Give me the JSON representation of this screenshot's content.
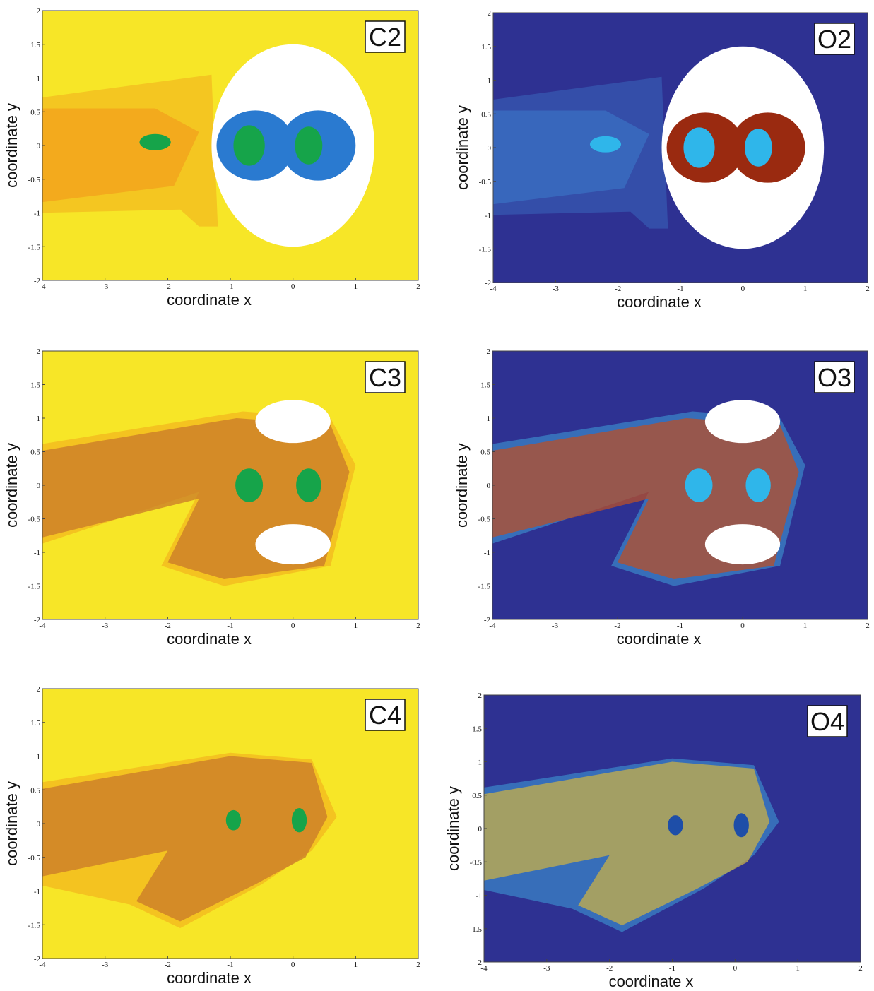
{
  "panels": [
    {
      "label": "C2",
      "background": "#f7e627",
      "accent": "#f2a51c",
      "core": "#2a7ad0",
      "spot": "#16a44a",
      "xlabel": "coordinate x",
      "ylabel": "coordinate y",
      "xlim": [
        -4,
        2
      ],
      "ylim": [
        -2,
        2
      ],
      "xticks": [
        -4,
        -3,
        -2,
        -1,
        0,
        1,
        2
      ],
      "yticks": [
        -2,
        -1.5,
        -1,
        -0.5,
        0,
        0.5,
        1,
        1.5,
        2
      ]
    },
    {
      "label": "O2",
      "background": "#2e3192",
      "accent": "#3a6cc0",
      "core": "#9a2a10",
      "spot": "#2fb6ea",
      "xlabel": "coordinate x",
      "ylabel": "coordinate y",
      "xlim": [
        -4,
        2
      ],
      "ylim": [
        -2,
        2
      ],
      "xticks": [
        -4,
        -3,
        -2,
        -1,
        0,
        1,
        2
      ],
      "yticks": [
        -2,
        -1.5,
        -1,
        -0.5,
        0,
        0.5,
        1,
        1.5,
        2
      ]
    },
    {
      "label": "C3",
      "background": "#f7e627",
      "accent": "#f2a51c",
      "core": "#c9782a",
      "spot": "#16a44a",
      "xlabel": "coordinate x",
      "ylabel": "coordinate y",
      "xlim": [
        -4,
        2
      ],
      "ylim": [
        -2,
        2
      ],
      "xticks": [
        -4,
        -3,
        -2,
        -1,
        0,
        1,
        2
      ],
      "yticks": [
        -2,
        -1.5,
        -1,
        -0.5,
        0,
        0.5,
        1,
        1.5,
        2
      ]
    },
    {
      "label": "O3",
      "background": "#2e3192",
      "accent": "#3fa0d8",
      "core": "#b8502a",
      "spot": "#2fb6ea",
      "xlabel": "coordinate x",
      "ylabel": "coordinate y",
      "xlim": [
        -4,
        2
      ],
      "ylim": [
        -2,
        2
      ],
      "xticks": [
        -4,
        -3,
        -2,
        -1,
        0,
        1,
        2
      ],
      "yticks": [
        -2,
        -1.5,
        -1,
        -0.5,
        0,
        0.5,
        1,
        1.5,
        2
      ]
    },
    {
      "label": "C4",
      "background": "#f7e627",
      "accent": "#f2a51c",
      "core": "#c9782a",
      "spot": "#16a44a",
      "xlabel": "coordinate x",
      "ylabel": "coordinate y",
      "xlim": [
        -4,
        2
      ],
      "ylim": [
        -2,
        2
      ],
      "xticks": [
        -4,
        -3,
        -2,
        -1,
        0,
        1,
        2
      ],
      "yticks": [
        -2,
        -1.5,
        -1,
        -0.5,
        0,
        0.5,
        1,
        1.5,
        2
      ]
    },
    {
      "label": "O4",
      "background": "#2e3192",
      "accent": "#3fa0d8",
      "core": "#c8b048",
      "spot": "#1e4ea8",
      "xlabel": "coordinate x",
      "ylabel": "coordinate y",
      "xlim": [
        -4,
        2
      ],
      "ylim": [
        -2,
        2
      ],
      "xticks": [
        -4,
        -3,
        -2,
        -1,
        0,
        1,
        2
      ],
      "yticks": [
        -2,
        -1.5,
        -1,
        -0.5,
        0,
        0.5,
        1,
        1.5,
        2
      ]
    }
  ]
}
